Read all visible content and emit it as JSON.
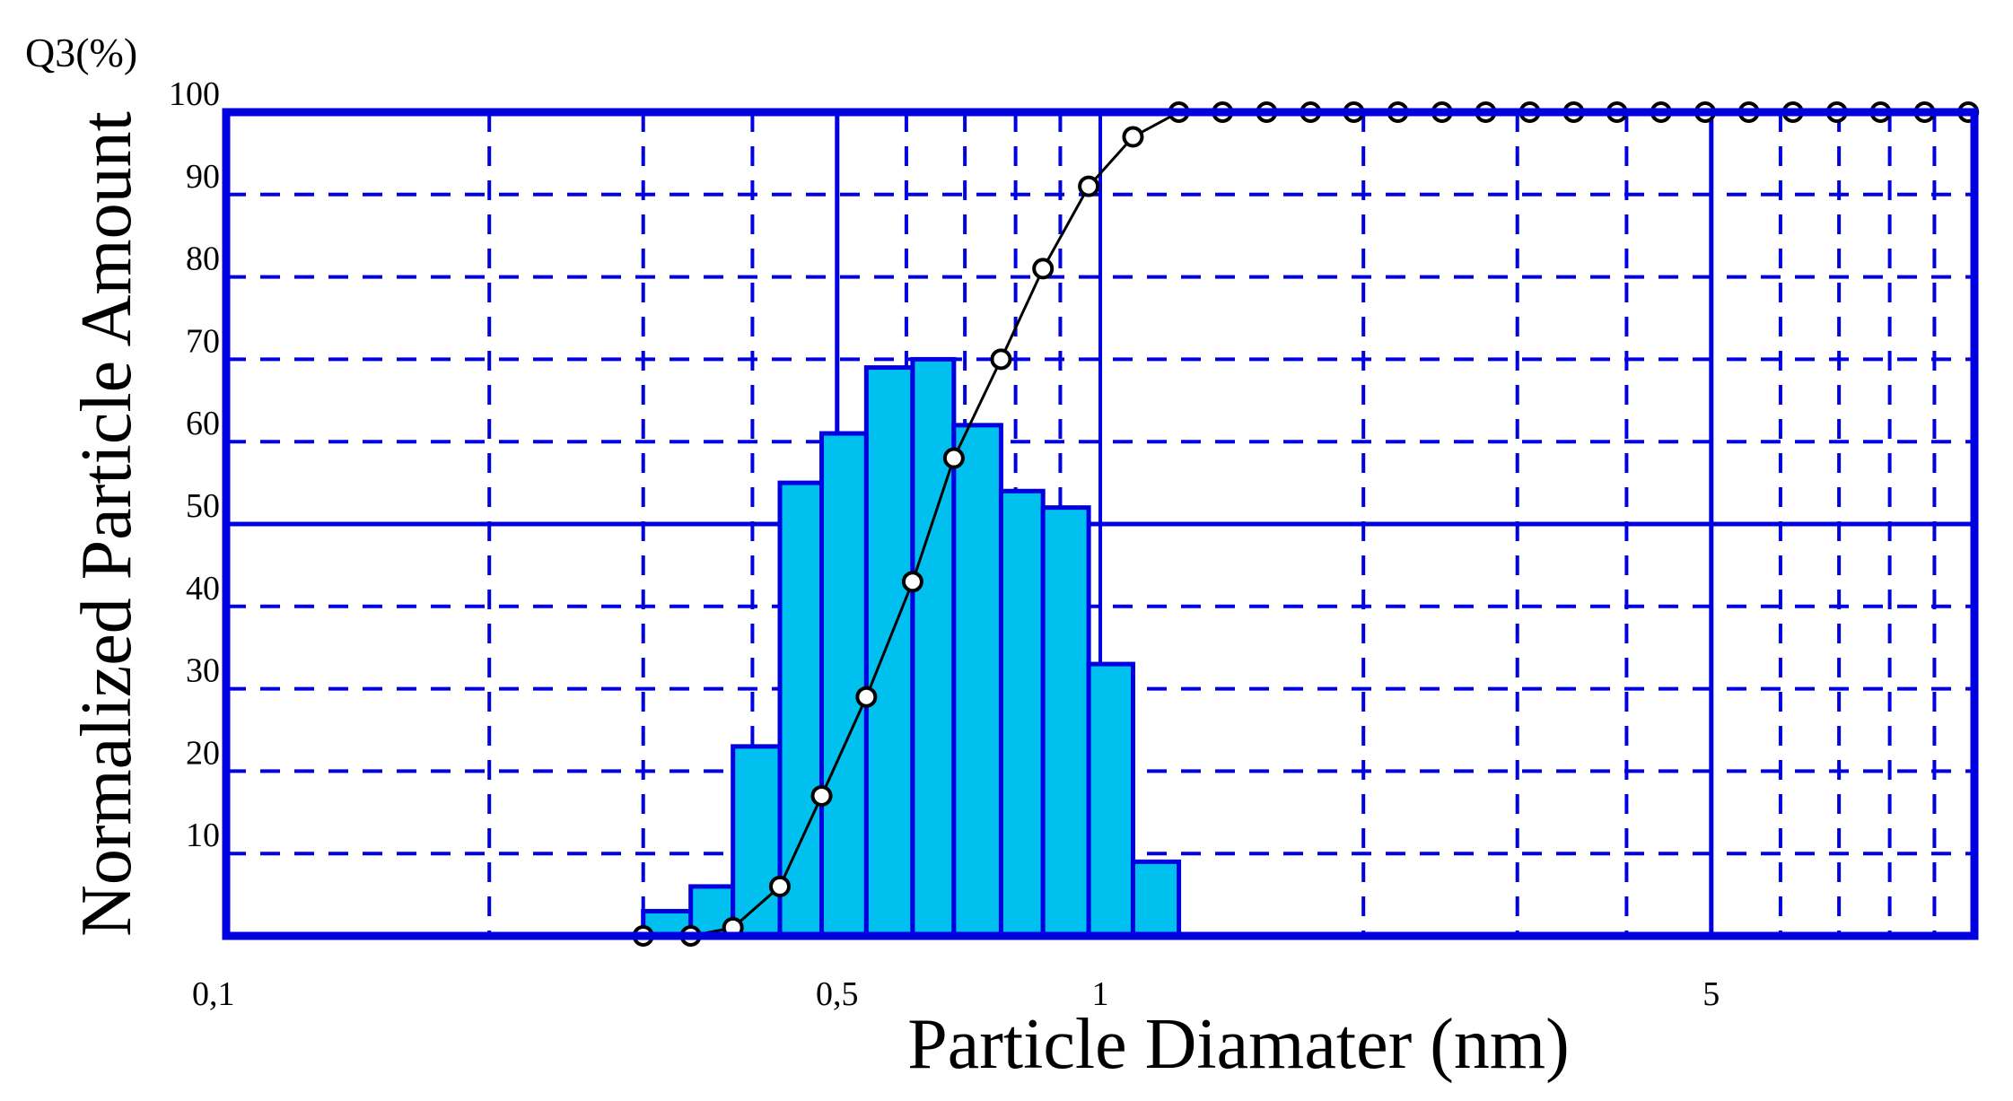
{
  "chart_data": {
    "type": "bar",
    "corner_label": "Q3(%)",
    "xlabel": "Particle Diamater (nm)",
    "ylabel": "Normalized Particle Amount",
    "x_scale": "log",
    "xlim": [
      0.1,
      10
    ],
    "ylim": [
      0,
      100
    ],
    "x_tick_labels": [
      {
        "value": 0.1,
        "label": "0,1"
      },
      {
        "value": 0.5,
        "label": "0,5"
      },
      {
        "value": 1,
        "label": "1"
      },
      {
        "value": 5,
        "label": "5"
      }
    ],
    "y_ticks": [
      10,
      20,
      30,
      40,
      50,
      60,
      70,
      80,
      90,
      100
    ],
    "grid": true,
    "colors": {
      "bars": "#00c0f0",
      "axes": "#0000e0",
      "grid": "#0000e0",
      "curve": "#000000"
    },
    "histogram": {
      "bin_edges": [
        0.3,
        0.34,
        0.38,
        0.43,
        0.48,
        0.54,
        0.61,
        0.68,
        0.77,
        0.86,
        0.97,
        1.09,
        1.23
      ],
      "values": [
        3,
        6,
        23,
        55,
        61,
        69,
        70,
        62,
        54,
        52,
        33,
        9
      ]
    },
    "cumulative": {
      "x": [
        0.3,
        0.34,
        0.38,
        0.43,
        0.48,
        0.54,
        0.61,
        0.68,
        0.77,
        0.86,
        0.97,
        1.09,
        1.23,
        1.38,
        1.55,
        1.74,
        1.95,
        2.19,
        2.46,
        2.76,
        3.1,
        3.48,
        3.9,
        4.38,
        4.92,
        5.52,
        6.2,
        6.96,
        7.81,
        8.77,
        9.84
      ],
      "y": [
        0,
        0,
        1,
        6,
        17,
        29,
        43,
        58,
        70,
        81,
        91,
        97,
        100,
        100,
        100,
        100,
        100,
        100,
        100,
        100,
        100,
        100,
        100,
        100,
        100,
        100,
        100,
        100,
        100,
        100,
        100
      ]
    }
  }
}
